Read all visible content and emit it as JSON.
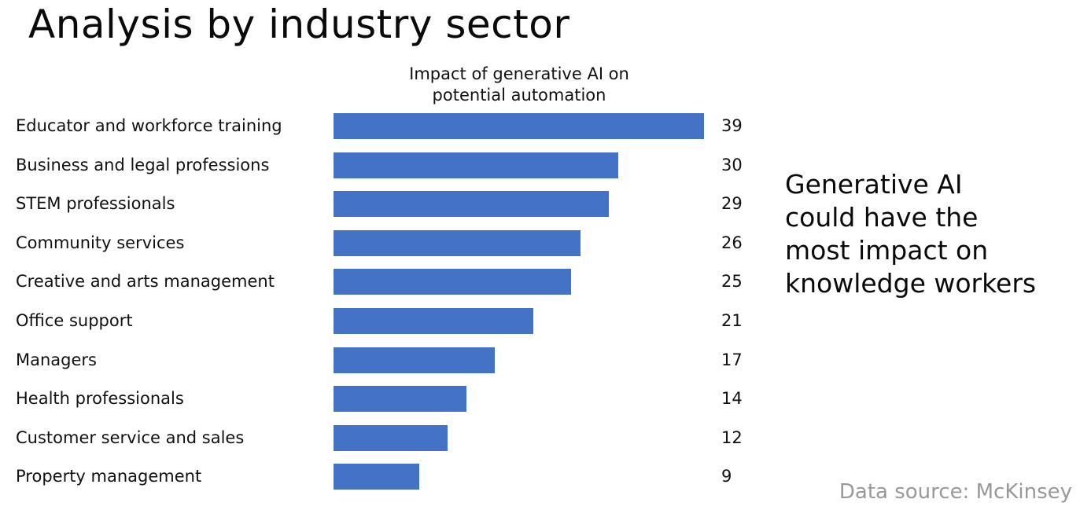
{
  "slide": {
    "title": "Analysis by industry sector",
    "callout_lines": [
      "Generative AI",
      "could have the",
      "most impact on",
      "knowledge workers"
    ],
    "source_note": "Data source: McKinsey"
  },
  "chart_data": {
    "type": "bar",
    "orientation": "horizontal",
    "title_lines": [
      "Impact of generative AI on",
      "potential automation"
    ],
    "categories": [
      "Educator and workforce training",
      "Business and legal professions",
      "STEM professionals",
      "Community services",
      "Creative and arts management",
      "Office support",
      "Managers",
      "Health professionals",
      "Customer service and sales",
      "Property management"
    ],
    "values": [
      39,
      30,
      29,
      26,
      25,
      21,
      17,
      14,
      12,
      9
    ],
    "value_labels": [
      "39",
      "30",
      "29",
      "26",
      "25",
      "21",
      "17",
      "14",
      "12",
      "9"
    ],
    "xlim": [
      0,
      39
    ],
    "grid": false,
    "legend": "none",
    "bar_color": "#4472c4"
  }
}
